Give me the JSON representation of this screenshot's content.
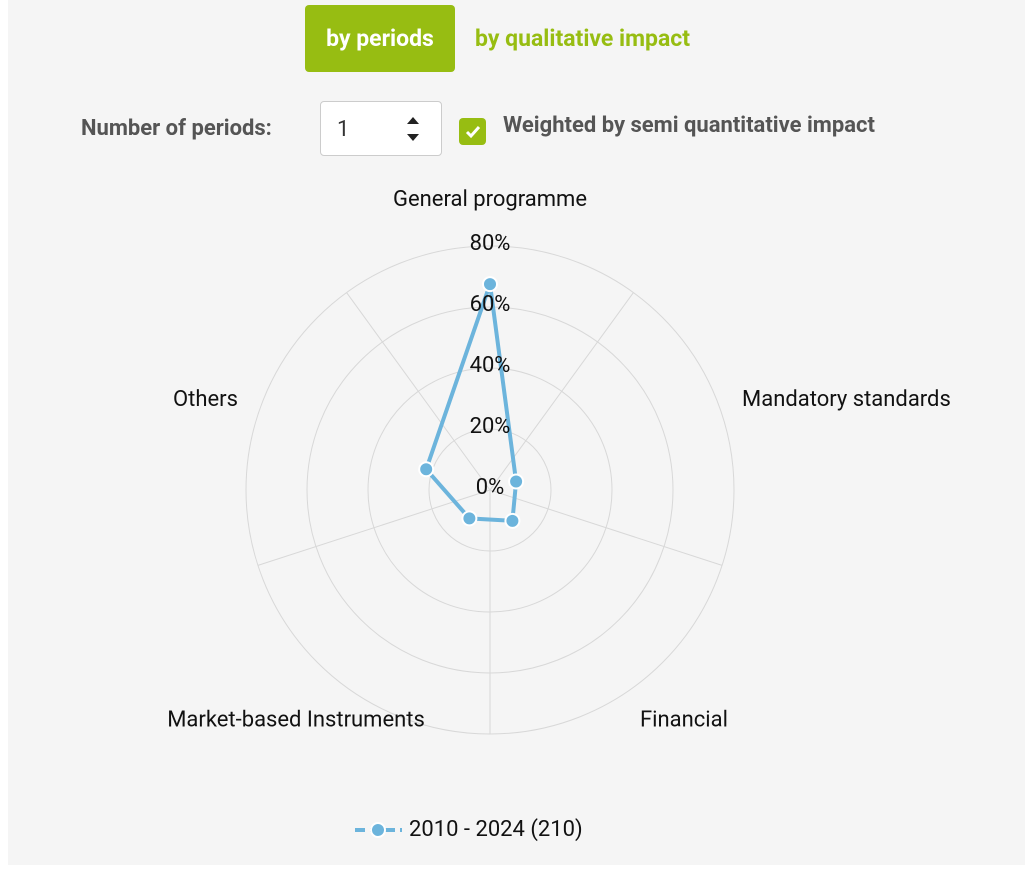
{
  "controls": {
    "tabs": [
      "by periods",
      "by qualitative impact"
    ],
    "periods_label": "Number of periods:",
    "periods_value": "1",
    "weighted_label": "Weighted by semi quantitative impact",
    "weighted_checked": true
  },
  "chart_data": {
    "type": "radar",
    "categories": [
      "General programme",
      "Mandatory standards",
      "Financial",
      "Market-based Instruments",
      "Others"
    ],
    "series": [
      {
        "name": "2010 - 2024 (210)",
        "color": "#6cb4dc",
        "values": [
          67.5,
          9,
          12.5,
          11.5,
          22
        ]
      }
    ],
    "ylim": [
      0,
      80
    ],
    "yticks": [
      {
        "value": 0,
        "label": "0%"
      },
      {
        "value": 20,
        "label": "20%"
      },
      {
        "value": 40,
        "label": "40%"
      },
      {
        "value": 60,
        "label": "60%"
      },
      {
        "value": 80,
        "label": "80%"
      }
    ],
    "grid": true
  }
}
